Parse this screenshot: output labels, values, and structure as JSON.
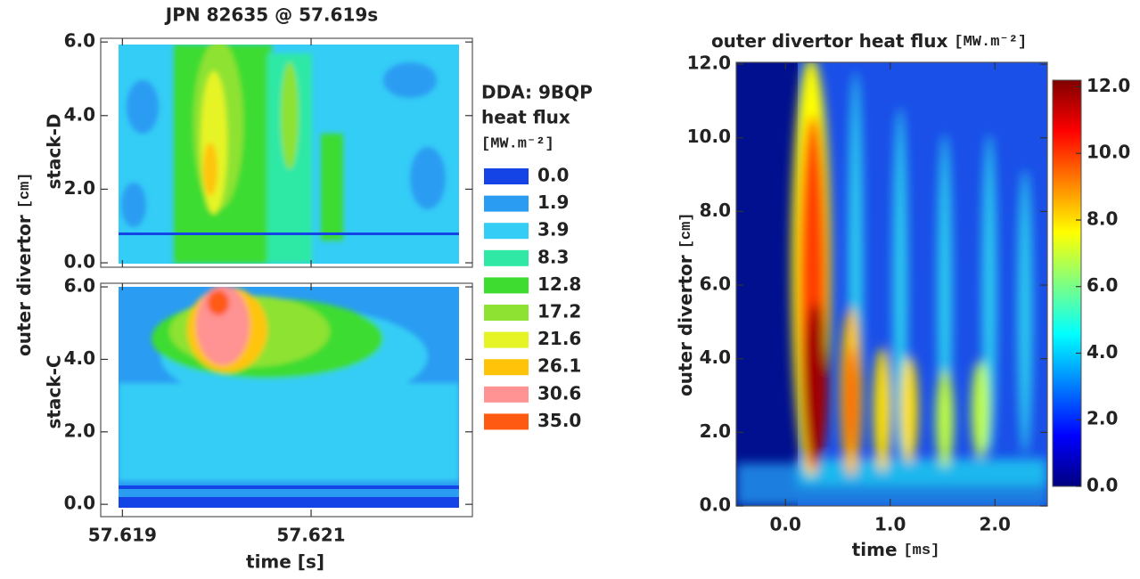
{
  "chart_data": [
    {
      "type": "contour",
      "title": "JPN 82635 @ 57.619s",
      "xlabel": "time [s]",
      "ylabel": "outer divertor",
      "ylabel_unit": "[cm]",
      "xlim": [
        57.61877,
        57.62271
      ],
      "xticks": [
        57.619,
        57.621
      ],
      "panels": [
        {
          "label": "stack-D",
          "ylim": [
            -0.12,
            6.1
          ],
          "yticks": [
            {
              "value": 0,
              "label": "0.0"
            },
            {
              "value": 2,
              "label": "2.0"
            },
            {
              "value": 4,
              "label": "4.0"
            },
            {
              "value": 6,
              "label": "6.0"
            }
          ]
        },
        {
          "label": "stack-C",
          "ylim": [
            -0.34,
            6.1
          ],
          "yticks": [
            {
              "value": 0,
              "label": "0.0"
            },
            {
              "value": 2,
              "label": "2.0"
            },
            {
              "value": 4,
              "label": "4.0"
            },
            {
              "value": 6,
              "label": "6.0"
            }
          ]
        }
      ],
      "legend": {
        "title": [
          "DDA: 9BQP",
          "heat flux",
          "[MW.m⁻²]"
        ],
        "levels": [
          {
            "value": 0,
            "label": "0.0"
          },
          1.9,
          3.9,
          8.3,
          12.8,
          17.2,
          21.6,
          26.1,
          30.6,
          {
            "value": 35,
            "label": "35.0"
          }
        ],
        "colors": [
          "#1444e6",
          "#2a9cf2",
          "#34cdf6",
          "#2fe8a6",
          "#3edc30",
          "#8ee232",
          "#e6f425",
          "#ffc40a",
          "#ff9292",
          "#ff5a12"
        ]
      }
    },
    {
      "type": "heatmap",
      "title": "outer divertor heat flux",
      "title_unit": "[MW.m⁻²]",
      "xlabel": "time",
      "xlabel_unit": "[ms]",
      "ylabel": "outer divertor",
      "ylabel_unit": "[cm]",
      "xlim": [
        -0.47,
        2.5
      ],
      "xticks": [
        {
          "value": 0,
          "label": "0.0"
        },
        {
          "value": 1,
          "label": "1.0"
        },
        {
          "value": 2,
          "label": "2.0"
        }
      ],
      "ylim": [
        0,
        12.05
      ],
      "yticks": [
        {
          "value": 0,
          "label": "0.0"
        },
        {
          "value": 2,
          "label": "2.0"
        },
        {
          "value": 4,
          "label": "4.0"
        },
        {
          "value": 6,
          "label": "6.0"
        },
        {
          "value": 8,
          "label": "8.0"
        },
        {
          "value": 10,
          "label": "10.0"
        },
        {
          "value": 12,
          "label": "12.0"
        }
      ],
      "clim": [
        0,
        12.2
      ],
      "cticks": [
        {
          "value": 0,
          "label": "0.0"
        },
        {
          "value": 2,
          "label": "2.0"
        },
        {
          "value": 4,
          "label": "4.0"
        },
        {
          "value": 6,
          "label": "6.0"
        },
        {
          "value": 8,
          "label": "8.0"
        },
        {
          "value": 10,
          "label": "10.0"
        },
        {
          "value": 12,
          "label": "12.0"
        }
      ],
      "colormap": [
        "#00007f",
        "#0000ff",
        "#0080ff",
        "#00ffff",
        "#80ff80",
        "#ffff00",
        "#ff8000",
        "#ff0000",
        "#7f0000"
      ]
    }
  ]
}
